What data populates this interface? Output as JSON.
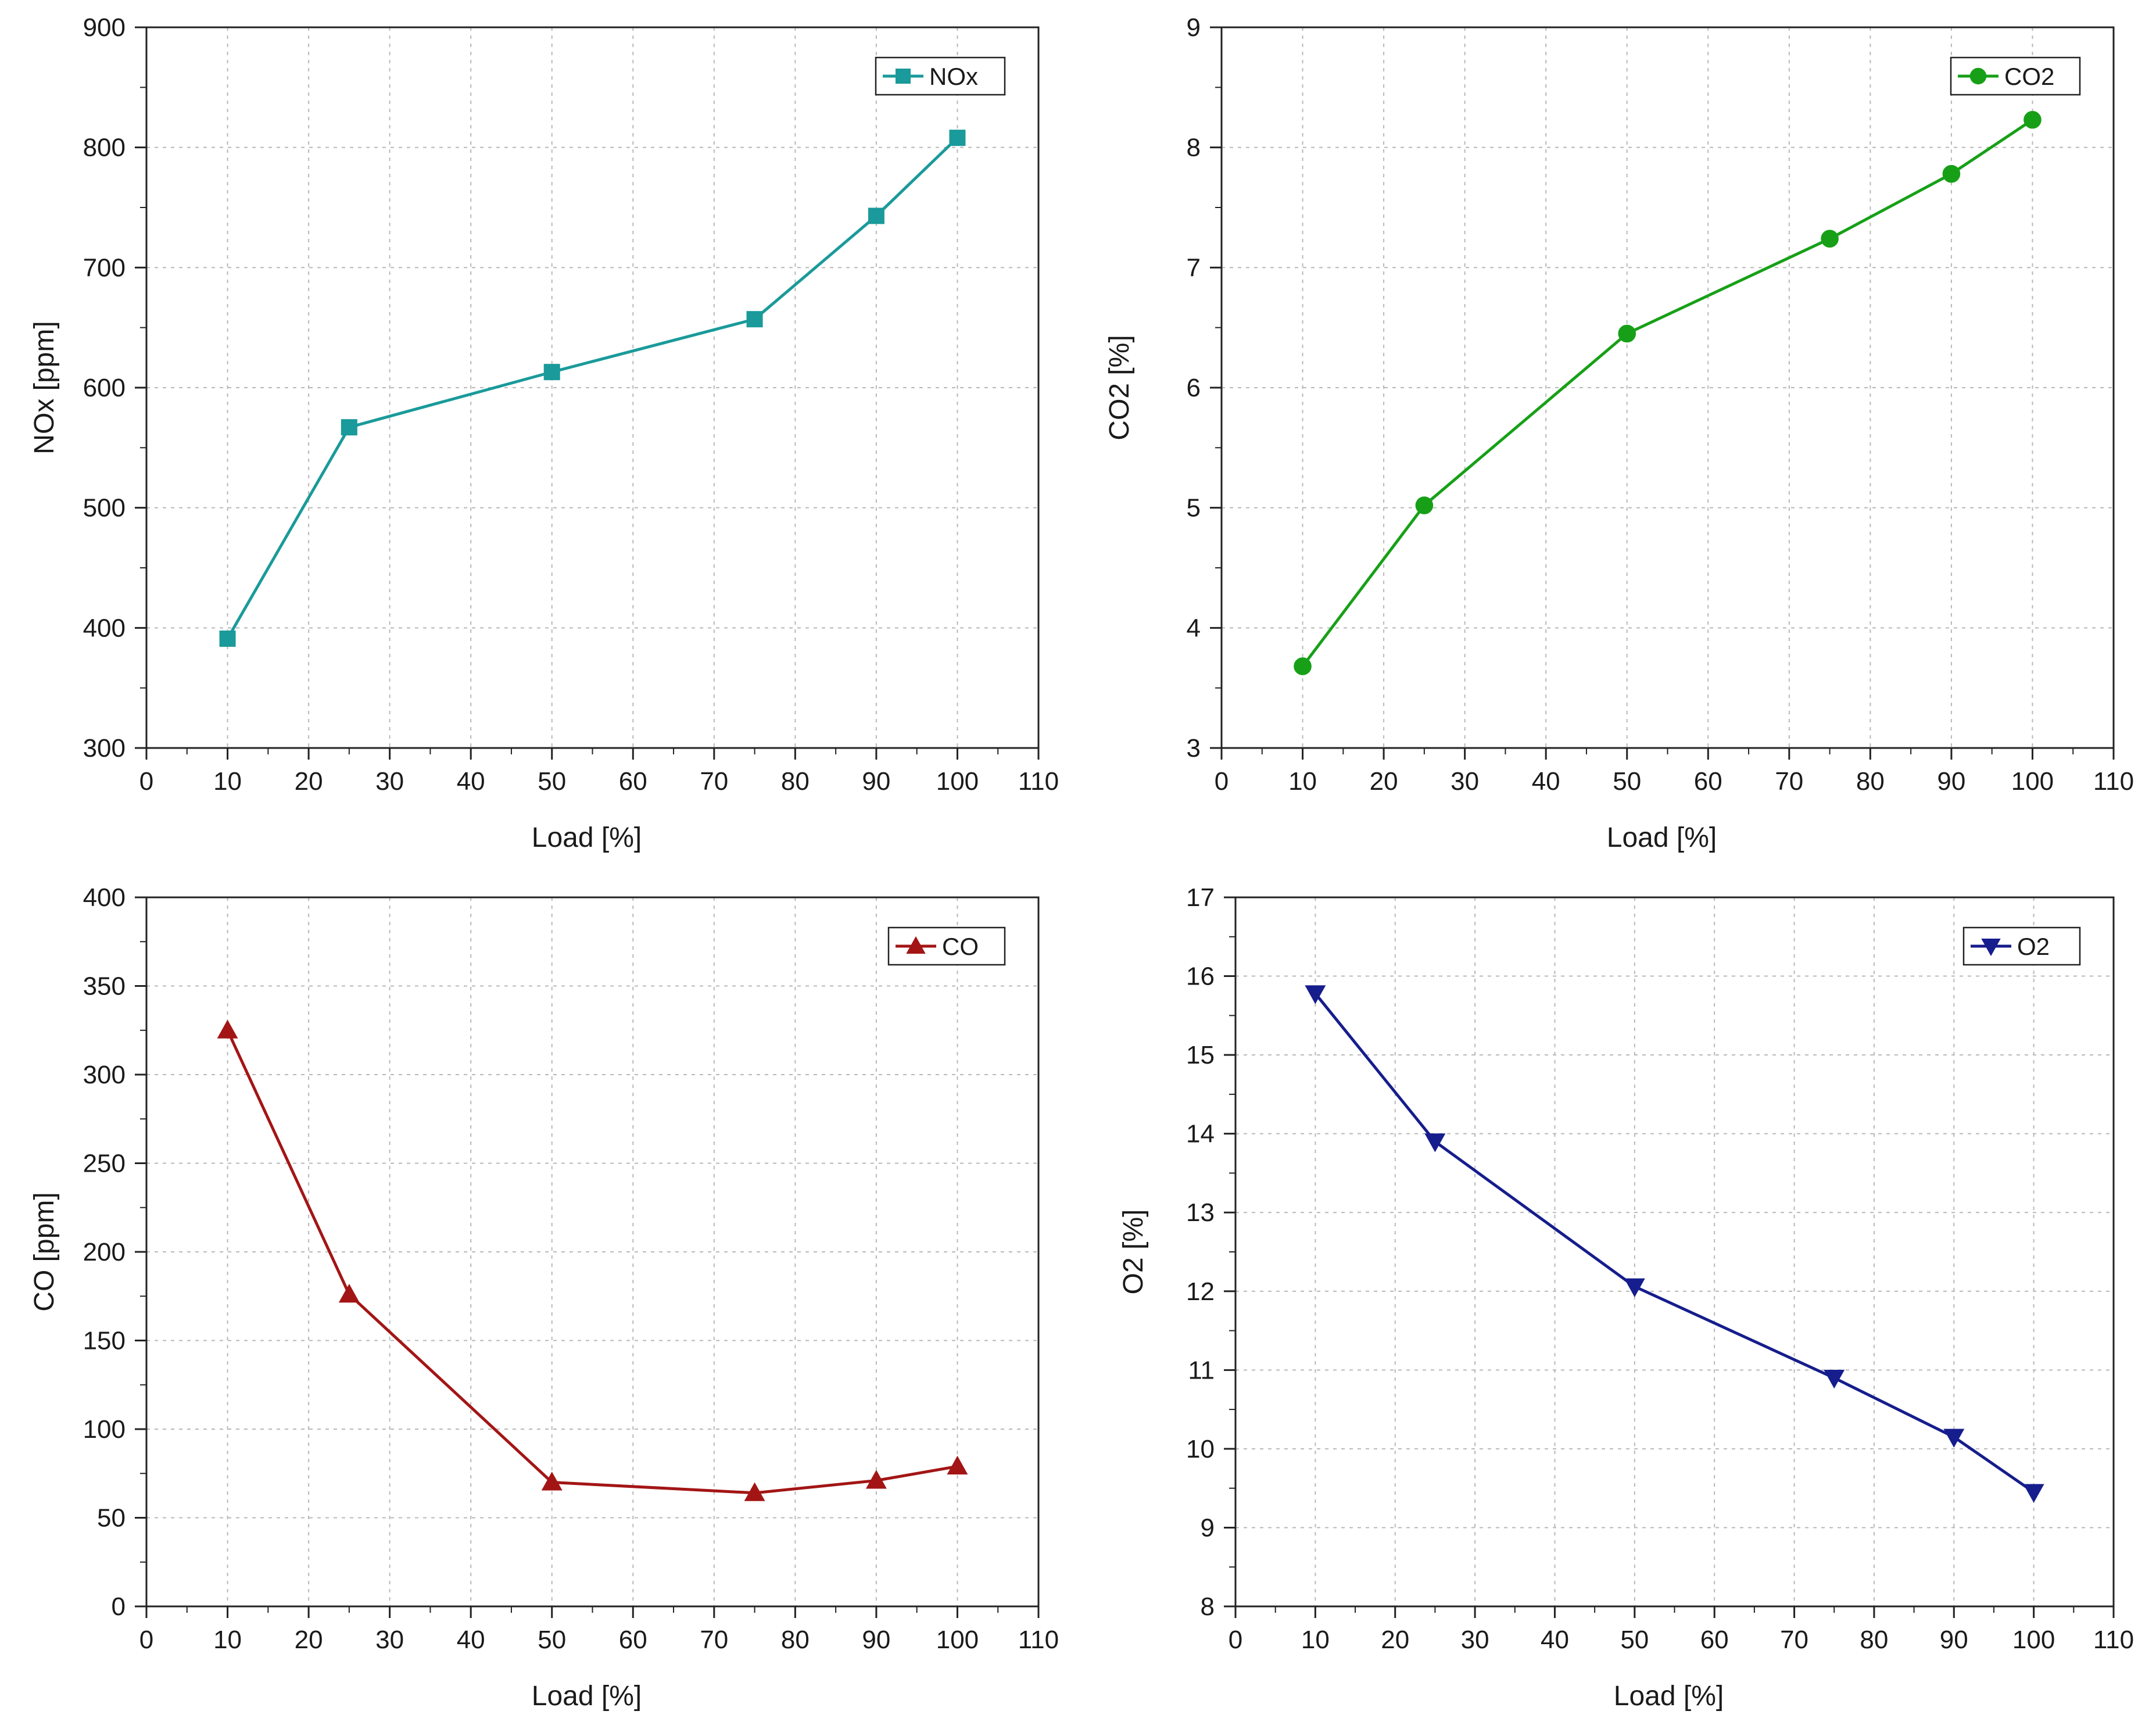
{
  "chart_data": [
    {
      "id": "nox",
      "type": "line",
      "title": "",
      "xlabel": "Load [%]",
      "ylabel": "NOx [ppm]",
      "xlim": [
        0,
        110
      ],
      "ylim": [
        300,
        900
      ],
      "xticks": [
        0,
        10,
        20,
        30,
        40,
        50,
        60,
        70,
        80,
        90,
        100,
        110
      ],
      "yticks": [
        300,
        400,
        500,
        600,
        700,
        800,
        900
      ],
      "grid": true,
      "legend_position": "top-right",
      "series": [
        {
          "name": "NOx",
          "marker": "square",
          "color": "#1a9a9a",
          "x": [
            10,
            25,
            50,
            75,
            90,
            100
          ],
          "y": [
            391,
            567,
            613,
            657,
            743,
            808
          ]
        }
      ]
    },
    {
      "id": "co2",
      "type": "line",
      "title": "",
      "xlabel": "Load [%]",
      "ylabel": "CO2 [%]",
      "xlim": [
        0,
        110
      ],
      "ylim": [
        3,
        9
      ],
      "xticks": [
        0,
        10,
        20,
        30,
        40,
        50,
        60,
        70,
        80,
        90,
        100,
        110
      ],
      "yticks": [
        3,
        4,
        5,
        6,
        7,
        8,
        9
      ],
      "grid": true,
      "legend_position": "top-right",
      "series": [
        {
          "name": "CO2",
          "marker": "circle",
          "color": "#17a017",
          "x": [
            10,
            25,
            50,
            75,
            90,
            100
          ],
          "y": [
            3.68,
            5.02,
            6.45,
            7.24,
            7.78,
            8.23
          ]
        }
      ]
    },
    {
      "id": "co",
      "type": "line",
      "title": "",
      "xlabel": "Load [%]",
      "ylabel": "CO [ppm]",
      "xlim": [
        0,
        110
      ],
      "ylim": [
        0,
        400
      ],
      "xticks": [
        0,
        10,
        20,
        30,
        40,
        50,
        60,
        70,
        80,
        90,
        100,
        110
      ],
      "yticks": [
        0,
        50,
        100,
        150,
        200,
        250,
        300,
        350,
        400
      ],
      "grid": true,
      "legend_position": "top-right",
      "series": [
        {
          "name": "CO",
          "marker": "triangle-up",
          "color": "#a31515",
          "x": [
            10,
            25,
            50,
            75,
            90,
            100
          ],
          "y": [
            325,
            176,
            70,
            64,
            71,
            79
          ]
        }
      ]
    },
    {
      "id": "o2",
      "type": "line",
      "title": "",
      "xlabel": "Load [%]",
      "ylabel": "O2 [%]",
      "xlim": [
        0,
        110
      ],
      "ylim": [
        8,
        17
      ],
      "xticks": [
        0,
        10,
        20,
        30,
        40,
        50,
        60,
        70,
        80,
        90,
        100,
        110
      ],
      "yticks": [
        8,
        9,
        10,
        11,
        12,
        13,
        14,
        15,
        16,
        17
      ],
      "grid": true,
      "legend_position": "top-right",
      "series": [
        {
          "name": "O2",
          "marker": "triangle-down",
          "color": "#161d8c",
          "x": [
            10,
            25,
            50,
            75,
            90,
            100
          ],
          "y": [
            15.78,
            13.9,
            12.06,
            10.9,
            10.15,
            9.45
          ]
        }
      ]
    }
  ]
}
